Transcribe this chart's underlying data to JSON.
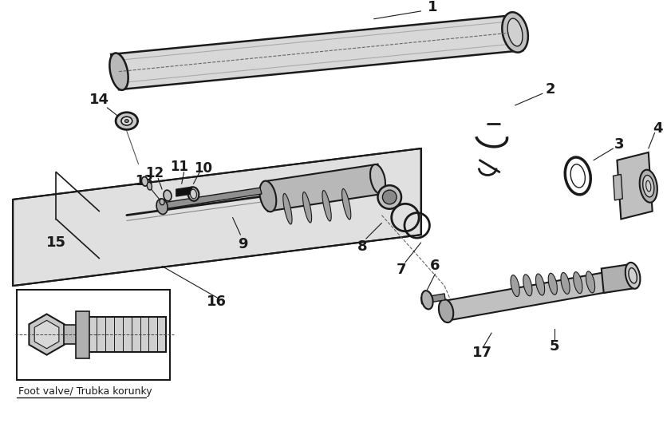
{
  "background_color": "#ffffff",
  "line_color": "#1a1a1a",
  "foot_valve_label": "Foot valve/ Trubka korunky",
  "figsize": [
    8.36,
    5.4
  ],
  "dpi": 100
}
